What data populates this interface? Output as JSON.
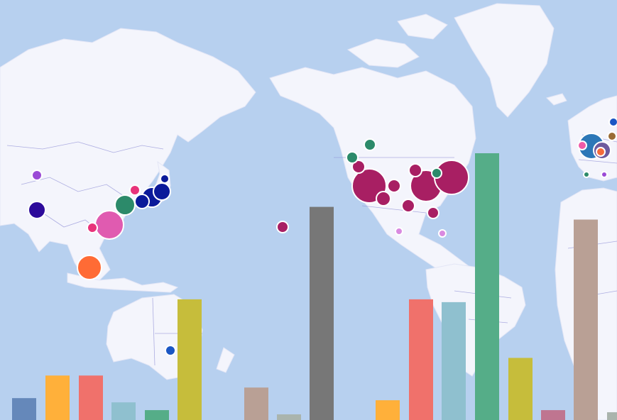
{
  "map": {
    "ocean_color": "#b7d0ef",
    "land_color": "#f4f5fc",
    "border_color": "#8f8fd6",
    "marker_outline": "#ffffff"
  },
  "markers": [
    {
      "region": "europe",
      "color": "#2c77b7",
      "size": 1.0
    },
    {
      "region": "europe",
      "color": "#6d5a9e",
      "size": 0.8
    },
    {
      "region": "europe",
      "color": "#f46b3b",
      "size": 0.4
    },
    {
      "region": "europe",
      "color": "#f05ba8",
      "size": 0.4
    },
    {
      "region": "europe",
      "color": "#9a6b34",
      "size": 0.35
    },
    {
      "region": "europe",
      "color": "#2c8a6a",
      "size": 0.3
    },
    {
      "region": "europe",
      "color": "#9b4bd6",
      "size": 0.3
    },
    {
      "region": "europe",
      "color": "#1a56c4",
      "size": 0.3
    },
    {
      "region": "north-america",
      "color": "#a81f63",
      "size": 1.0
    },
    {
      "region": "north-america",
      "color": "#2c8a6a",
      "size": 0.4
    },
    {
      "region": "north-america",
      "color": "#d98ae0",
      "size": 0.3
    },
    {
      "region": "east-asia",
      "color": "#0b1a9a",
      "size": 1.0
    },
    {
      "region": "east-asia",
      "color": "#2c8a6a",
      "size": 0.8
    },
    {
      "region": "east-asia",
      "color": "#e05bb0",
      "size": 1.0
    },
    {
      "region": "east-asia",
      "color": "#e8337a",
      "size": 0.4
    },
    {
      "region": "south-asia",
      "color": "#2d0b9b",
      "size": 0.7
    },
    {
      "region": "central-asia",
      "color": "#9b4bd6",
      "size": 0.4
    },
    {
      "region": "southeast-asia",
      "color": "#ff6b35",
      "size": 0.9
    },
    {
      "region": "australia",
      "color": "#1a56c4",
      "size": 0.4
    },
    {
      "region": "pacific",
      "color": "#a81f63",
      "size": 0.4
    }
  ],
  "chart_data": {
    "type": "bar",
    "ylim": [
      0,
      380
    ],
    "series": [
      {
        "color": "#6588ba",
        "value": 31
      },
      {
        "color": "#ffb03a",
        "value": 63
      },
      {
        "color": "#f0716b",
        "value": 63
      },
      {
        "color": "#8fc0cf",
        "value": 25
      },
      {
        "color": "#55ad88",
        "value": 14
      },
      {
        "color": "#c6bd3b",
        "value": 171
      },
      {
        "color": "#b9a095",
        "value": 46
      },
      {
        "color": "#aab4ad",
        "value": 8
      },
      {
        "color": "#777777",
        "value": 302
      },
      {
        "color": "#ffb03a",
        "value": 28
      },
      {
        "color": "#f0716b",
        "value": 171
      },
      {
        "color": "#8fc0cf",
        "value": 167
      },
      {
        "color": "#55ad88",
        "value": 378
      },
      {
        "color": "#c6bd3b",
        "value": 88
      },
      {
        "color": "#bf7590",
        "value": 14
      },
      {
        "color": "#b9a095",
        "value": 284
      },
      {
        "color": "#aab4ad",
        "value": 11
      }
    ]
  }
}
